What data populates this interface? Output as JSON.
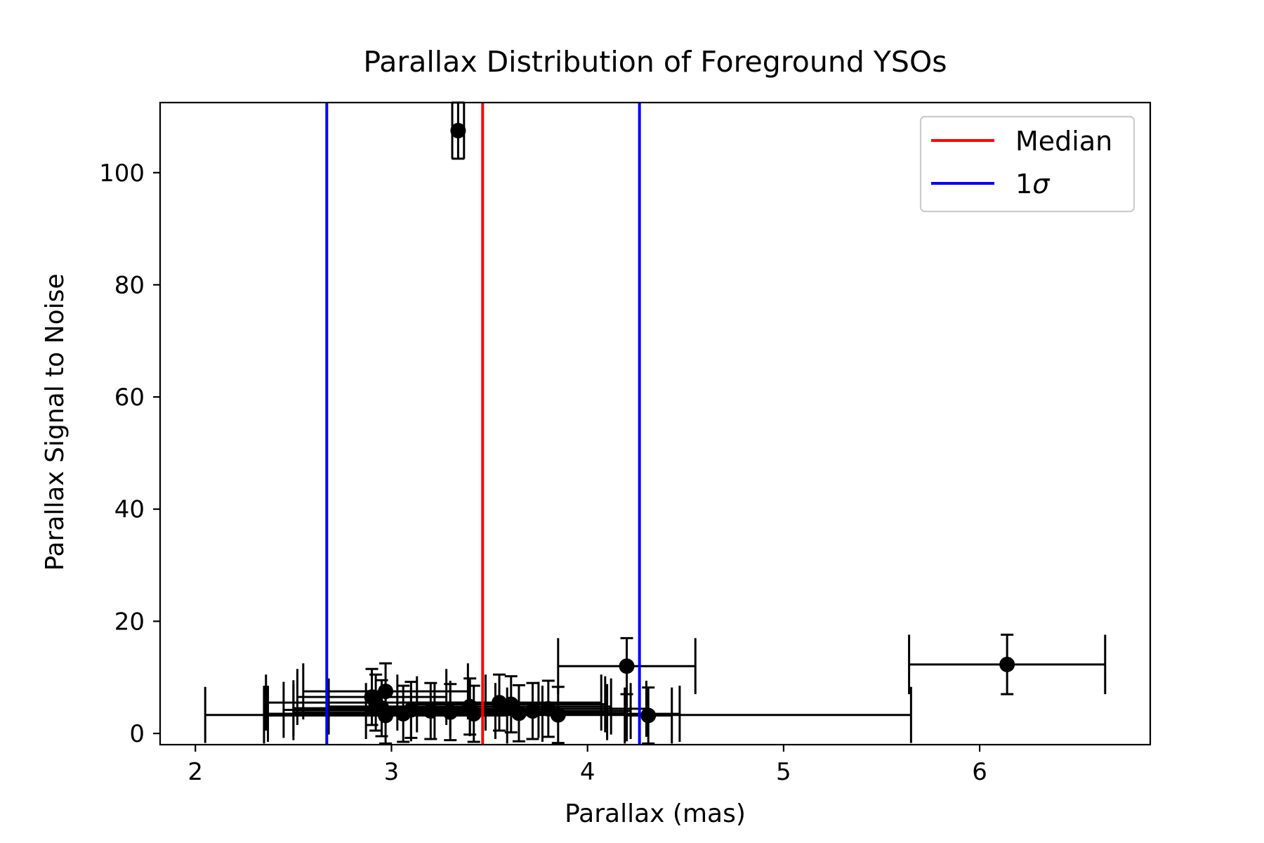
{
  "chart_data": {
    "type": "scatter",
    "title": "Parallax Distribution of Foreground YSOs",
    "xlabel": "Parallax (mas)",
    "ylabel": "Parallax Signal to Noise",
    "xlim": [
      1.82,
      6.87
    ],
    "ylim": [
      -2,
      112.5
    ],
    "xticks": [
      "2",
      "3",
      "4",
      "5",
      "6"
    ],
    "yticks": [
      "0",
      "20",
      "40",
      "60",
      "80",
      "100"
    ],
    "grid": false,
    "legend": {
      "placement": "top-right",
      "entries": [
        {
          "label": "Median",
          "color": "#ff0000"
        },
        {
          "label": "1",
          "symbol": "σ",
          "color": "#0000ff"
        }
      ]
    },
    "vlines": [
      {
        "name": "Median",
        "x": 3.465,
        "color": "#ff0000"
      },
      {
        "name": "1σ",
        "x": 2.67,
        "color": "#0000ff"
      },
      {
        "name": "1σ",
        "x": 4.265,
        "color": "#0000ff"
      }
    ],
    "points": [
      {
        "x": 3.34,
        "y": 107.5,
        "xerr": 0.03,
        "yerr": 5.0
      },
      {
        "x": 4.2,
        "y": 12.0,
        "xerr": 0.35,
        "yerr": 5.0
      },
      {
        "x": 6.14,
        "y": 12.3,
        "xerr": 0.5,
        "yerr": 5.3
      },
      {
        "x": 3.85,
        "y": 3.3,
        "xerr": 1.8,
        "yerr": 5.0
      },
      {
        "x": 3.42,
        "y": 3.5,
        "xerr": 1.05,
        "yerr": 5.0
      },
      {
        "x": 4.31,
        "y": 3.2,
        "xerr": 0.12,
        "yerr": 5.0
      },
      {
        "x": 2.97,
        "y": 7.5,
        "xerr": 0.42,
        "yerr": 5.0
      },
      {
        "x": 2.92,
        "y": 5.5,
        "xerr": 0.56,
        "yerr": 5.0
      },
      {
        "x": 2.97,
        "y": 3.2,
        "xerr": 0.62,
        "yerr": 5.0
      },
      {
        "x": 3.06,
        "y": 3.5,
        "xerr": 0.71,
        "yerr": 5.0
      },
      {
        "x": 3.2,
        "y": 4.0,
        "xerr": 0.33,
        "yerr": 5.0
      },
      {
        "x": 3.55,
        "y": 5.5,
        "xerr": 0.52,
        "yerr": 5.0
      },
      {
        "x": 3.61,
        "y": 5.2,
        "xerr": 0.48,
        "yerr": 5.0
      },
      {
        "x": 3.72,
        "y": 4.0,
        "xerr": 0.5,
        "yerr": 5.0
      },
      {
        "x": 3.4,
        "y": 4.8,
        "xerr": 0.72,
        "yerr": 5.0
      },
      {
        "x": 2.95,
        "y": 4.5,
        "xerr": 0.45,
        "yerr": 5.0
      },
      {
        "x": 2.9,
        "y": 6.5,
        "xerr": 0.38,
        "yerr": 5.0
      },
      {
        "x": 3.1,
        "y": 4.2,
        "xerr": 0.65,
        "yerr": 5.0
      },
      {
        "x": 3.3,
        "y": 3.8,
        "xerr": 0.8,
        "yerr": 5.0
      },
      {
        "x": 3.65,
        "y": 3.6,
        "xerr": 0.55,
        "yerr": 5.0
      },
      {
        "x": 3.8,
        "y": 4.4,
        "xerr": 0.5,
        "yerr": 5.0
      }
    ]
  }
}
